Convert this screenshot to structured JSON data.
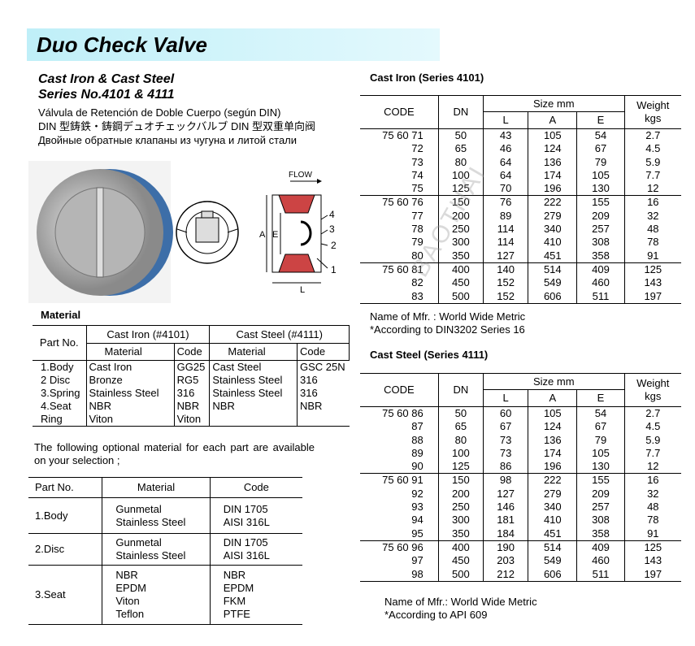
{
  "header": {
    "title": "Duo Check Valve"
  },
  "intro": {
    "lines": [
      "Cast Iron & Cast Steel",
      "Series No.4101 & 4111",
      "Válvula de Retención de Doble Cuerpo (según DIN)",
      "DIN 型鋳鉄・鋳鋼デュオチェックバルブ DIN 型双重单向阀",
      "Двойные обратные клапаны   из чугуна и литой стали"
    ]
  },
  "drawing": {
    "flow": "FLOW",
    "dim_a": "A",
    "dim_e": "E",
    "dim_l": "L",
    "parts": [
      "4",
      "3",
      "2",
      "1"
    ],
    "watermark": "BAOTHAI"
  },
  "material": {
    "title": "Material",
    "part_no": "Part No.",
    "groups": [
      "Cast Iron (#4101)",
      "Cast Steel (#4111)"
    ],
    "subheads": [
      "Material",
      "Code",
      "Material",
      "Code"
    ],
    "rows": [
      [
        "1.Body",
        "Cast Iron",
        "GG25",
        "Cast Steel",
        "GSC 25N"
      ],
      [
        "2 Disc",
        "Bronze",
        "RG5",
        "Stainless Steel",
        "316"
      ],
      [
        "3.Spring",
        "Stainless Steel",
        "316",
        "Stainless Steel",
        "316"
      ],
      [
        "4.Seat",
        "NBR",
        "NBR",
        "NBR",
        "NBR"
      ],
      [
        "Ring",
        "Viton",
        "Viton"
      ]
    ]
  },
  "optional": {
    "text": "The following optional material for each part are available on your selection ;",
    "headers": [
      "Part No.",
      "Material",
      "Code"
    ],
    "rows": [
      {
        "part": "1.Body",
        "materials": [
          "Gunmetal",
          "Stainless Steel"
        ],
        "codes": [
          "DIN 1705",
          "AISI 316L"
        ]
      },
      {
        "part": "2.Disc",
        "materials": [
          "Gunmetal",
          "Stainless Steel"
        ],
        "codes": [
          "DIN 1705",
          "AISI 316L"
        ]
      },
      {
        "part": "3.Seat",
        "materials": [
          "NBR",
          "EPDM",
          "Viton",
          "Teflon"
        ],
        "codes": [
          "NBR",
          "EPDM",
          "FKM",
          "PTFE"
        ]
      }
    ]
  },
  "cast_iron": {
    "title": "Cast Iron (Series 4101)",
    "headers": {
      "code": "CODE",
      "dn": "DN",
      "size": "Size mm",
      "dims": [
        "L",
        "A",
        "E"
      ],
      "weight": [
        "Weight",
        "kgs"
      ]
    },
    "groups": [
      [
        [
          "75 60 71",
          "50",
          "43",
          "105",
          "54",
          "2.7"
        ],
        [
          "72",
          "65",
          "46",
          "124",
          "67",
          "4.5"
        ],
        [
          "73",
          "80",
          "64",
          "136",
          "79",
          "5.9"
        ],
        [
          "74",
          "100",
          "64",
          "174",
          "105",
          "7.7"
        ],
        [
          "75",
          "125",
          "70",
          "196",
          "130",
          "12"
        ]
      ],
      [
        [
          "75 60 76",
          "150",
          "76",
          "222",
          "155",
          "16"
        ],
        [
          "77",
          "200",
          "89",
          "279",
          "209",
          "32"
        ],
        [
          "78",
          "250",
          "114",
          "340",
          "257",
          "48"
        ],
        [
          "79",
          "300",
          "114",
          "410",
          "308",
          "78"
        ],
        [
          "80",
          "350",
          "127",
          "451",
          "358",
          "91"
        ]
      ],
      [
        [
          "75 60 81",
          "400",
          "140",
          "514",
          "409",
          "125"
        ],
        [
          "82",
          "450",
          "152",
          "549",
          "460",
          "143"
        ],
        [
          "83",
          "500",
          "152",
          "606",
          "511",
          "197"
        ]
      ]
    ],
    "notes": [
      "Name of Mfr. : World Wide Metric",
      "*According to DIN3202 Series 16"
    ]
  },
  "cast_steel": {
    "title": "Cast Steel (Series 4111)",
    "headers": {
      "code": "CODE",
      "dn": "DN",
      "size": "Size mm",
      "dims": [
        "L",
        "A",
        "E"
      ],
      "weight": [
        "Weight",
        "kgs"
      ]
    },
    "groups": [
      [
        [
          "75 60 86",
          "50",
          "60",
          "105",
          "54",
          "2.7"
        ],
        [
          "87",
          "65",
          "67",
          "124",
          "67",
          "4.5"
        ],
        [
          "88",
          "80",
          "73",
          "136",
          "79",
          "5.9"
        ],
        [
          "89",
          "100",
          "73",
          "174",
          "105",
          "7.7"
        ],
        [
          "90",
          "125",
          "86",
          "196",
          "130",
          "12"
        ]
      ],
      [
        [
          "75 60 91",
          "150",
          "98",
          "222",
          "155",
          "16"
        ],
        [
          "92",
          "200",
          "127",
          "279",
          "209",
          "32"
        ],
        [
          "93",
          "250",
          "146",
          "340",
          "257",
          "48"
        ],
        [
          "94",
          "300",
          "181",
          "410",
          "308",
          "78"
        ],
        [
          "95",
          "350",
          "184",
          "451",
          "358",
          "91"
        ]
      ],
      [
        [
          "75 60 96",
          "400",
          "190",
          "514",
          "409",
          "125"
        ],
        [
          "97",
          "450",
          "203",
          "549",
          "460",
          "143"
        ],
        [
          "98",
          "500",
          "212",
          "606",
          "511",
          "197"
        ]
      ]
    ],
    "notes": [
      "Name of Mfr.: World Wide Metric",
      "*According to API 609"
    ]
  }
}
